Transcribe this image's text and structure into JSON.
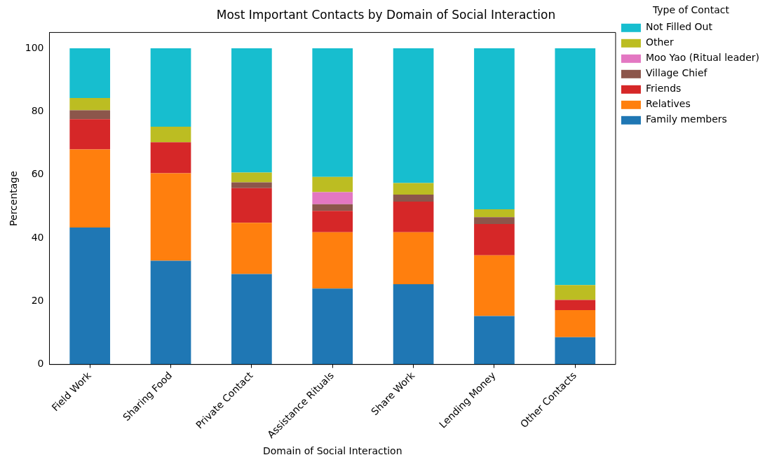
{
  "chart_data": {
    "type": "bar",
    "title": "Most Important Contacts by Domain of Social Interaction",
    "xlabel": "Domain of Social Interaction",
    "ylabel": "Percentage",
    "legend_title": "Type of Contact",
    "categories": [
      "Field Work",
      "Sharing Food",
      "Private Contact",
      "Assistance Rituals",
      "Share Work",
      "Lending Money",
      "Other Contacts"
    ],
    "stacked": true,
    "ylim": [
      0,
      105
    ],
    "yticks": [
      0,
      20,
      40,
      60,
      80,
      100
    ],
    "grid": false,
    "legend": "right",
    "series": [
      {
        "name": "Family members",
        "color": "#1f77b4",
        "values": [
          43.3,
          32.8,
          28.6,
          24.0,
          25.4,
          15.3,
          8.6
        ]
      },
      {
        "name": "Relatives",
        "color": "#ff7f0e",
        "values": [
          24.7,
          27.7,
          16.2,
          17.8,
          16.4,
          19.2,
          8.6
        ]
      },
      {
        "name": "Friends",
        "color": "#d62728",
        "values": [
          9.6,
          9.8,
          11.0,
          6.8,
          9.7,
          9.9,
          3.2
        ]
      },
      {
        "name": "Village Chief",
        "color": "#8c564b",
        "values": [
          2.8,
          0,
          1.8,
          2.1,
          2.2,
          2.2,
          0
        ]
      },
      {
        "name": "Moo Yao (Ritual leader)",
        "color": "#e377c2",
        "values": [
          0,
          0,
          0,
          3.8,
          0,
          0,
          0
        ]
      },
      {
        "name": "Other",
        "color": "#bcbd22",
        "values": [
          3.9,
          4.9,
          3.1,
          4.8,
          3.7,
          2.5,
          4.7
        ]
      },
      {
        "name": "Not Filled Out",
        "color": "#17becf",
        "values": [
          15.7,
          24.8,
          39.3,
          40.7,
          42.6,
          50.9,
          74.9
        ]
      }
    ]
  }
}
